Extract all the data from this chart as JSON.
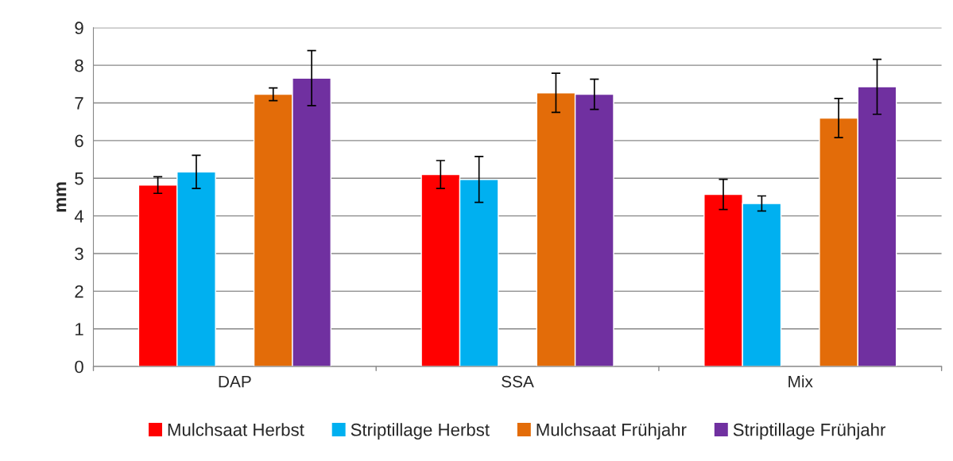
{
  "chart_data": {
    "type": "bar",
    "ylabel": "mm",
    "categories": [
      "DAP",
      "SSA",
      "Mix"
    ],
    "series": [
      {
        "name": "Mulchsaat Herbst",
        "color": "#ff0000",
        "values": [
          4.82,
          5.1,
          4.57
        ],
        "errors": [
          0.22,
          0.37,
          0.4
        ]
      },
      {
        "name": "Striptillage Herbst",
        "color": "#00b0f0",
        "values": [
          5.17,
          4.97,
          4.33
        ],
        "errors": [
          0.44,
          0.61,
          0.2
        ]
      },
      {
        "values": [
          null,
          null,
          null
        ]
      },
      {
        "name": "Mulchsaat Frühjahr",
        "color": "#e36c09",
        "values": [
          7.23,
          7.27,
          6.6
        ],
        "errors": [
          0.17,
          0.52,
          0.52
        ]
      },
      {
        "name": "Striptillage Frühjahr",
        "color": "#7030a0",
        "values": [
          7.66,
          7.23,
          7.43
        ],
        "errors": [
          0.73,
          0.4,
          0.73
        ]
      }
    ],
    "ylim": [
      0,
      9
    ],
    "yticks": [
      0,
      1,
      2,
      3,
      4,
      5,
      6,
      7,
      8,
      9
    ],
    "grid": "y",
    "legend": "bottom"
  }
}
